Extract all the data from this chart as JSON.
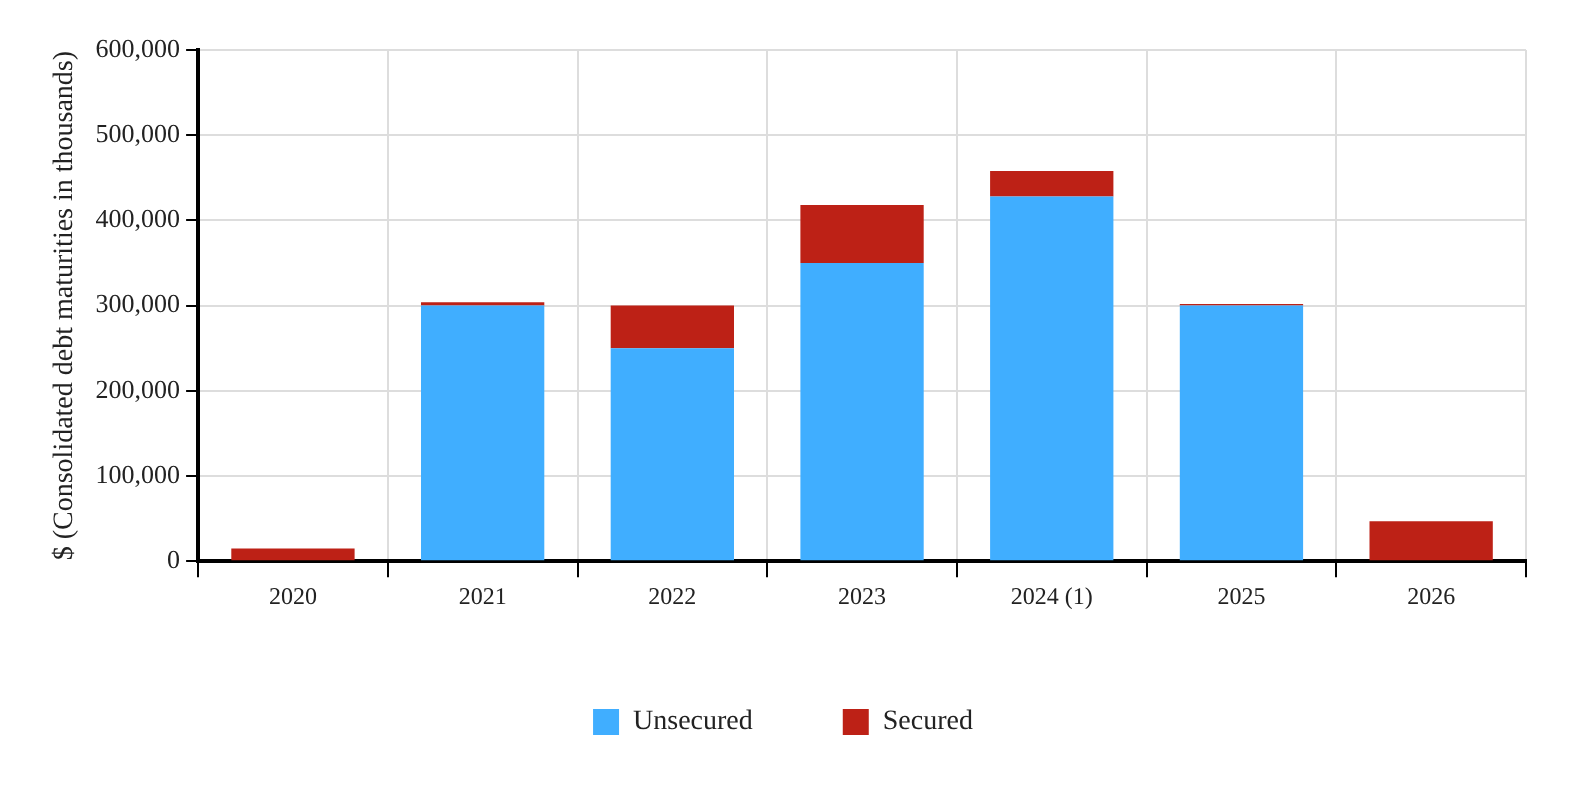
{
  "chart_data": {
    "type": "bar",
    "stacked": true,
    "ylabel": "$ (Consolidated debt maturities in thousands)",
    "categories": [
      "2020",
      "2021",
      "2022",
      "2023",
      "2024 (1)",
      "2025",
      "2026"
    ],
    "series": [
      {
        "name": "Unsecured",
        "color": "#40aeff",
        "values": [
          0,
          300000,
          250000,
          350000,
          428000,
          300000,
          0
        ]
      },
      {
        "name": "Secured",
        "color": "#bd2116",
        "values": [
          15000,
          4000,
          50000,
          68000,
          30000,
          2000,
          47000
        ]
      }
    ],
    "ylim": [
      0,
      600000
    ],
    "yticks": [
      0,
      {
        "value": 100000,
        "label": "100,000"
      },
      {
        "value": 200000,
        "label": "200,000"
      },
      {
        "value": 300000,
        "label": "300,000"
      },
      {
        "value": 400000,
        "label": "400,000"
      },
      {
        "value": 500000,
        "label": "500,000"
      },
      {
        "value": 600000,
        "label": "600,000"
      }
    ],
    "grid": true,
    "legend": "bottom"
  }
}
